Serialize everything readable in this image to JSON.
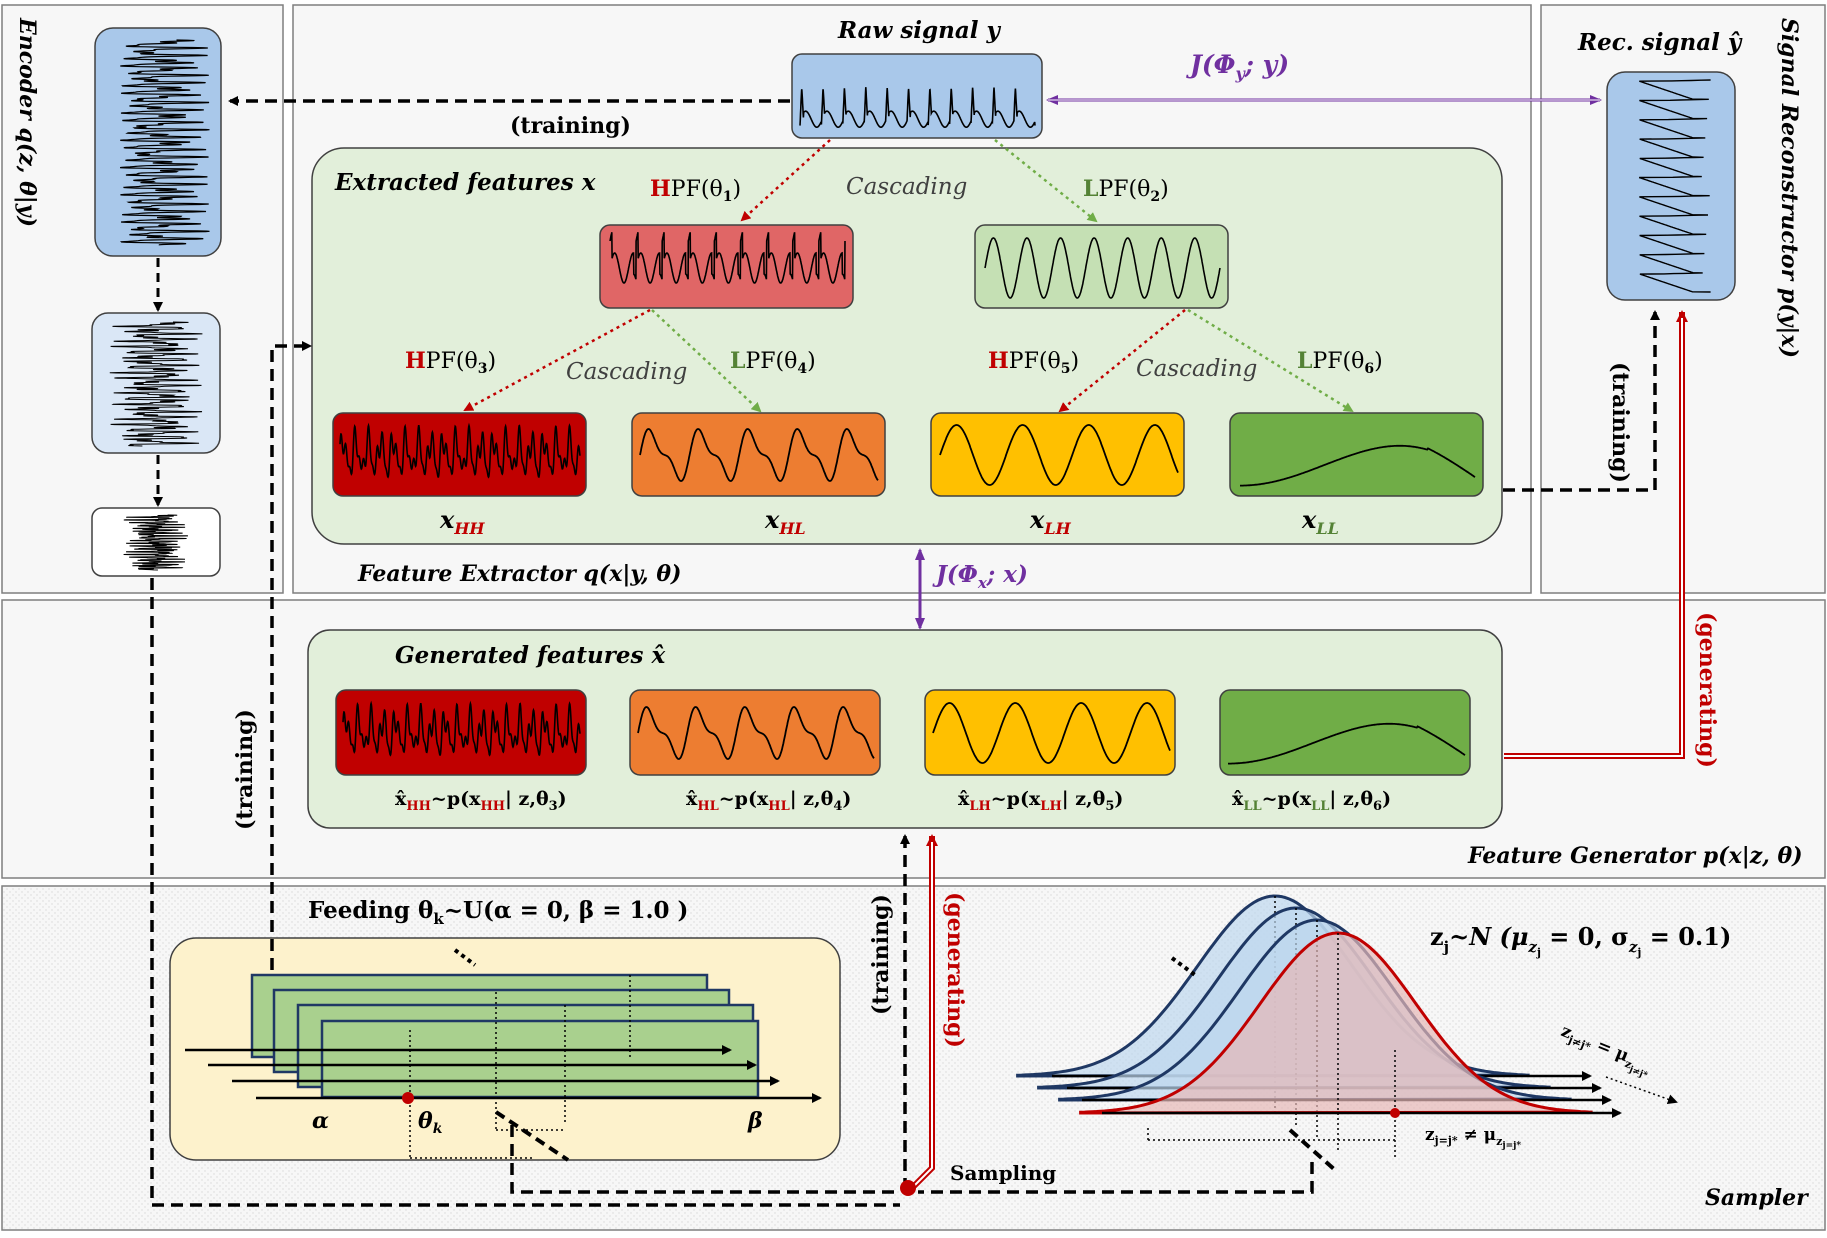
{
  "panels": {
    "encoder_label": "Encoder  q(z, θ|y)",
    "extractor_label": "Feature Extractor  q(x|y, θ)",
    "reconstructor_label": "Signal Reconstructor  p(y|x)",
    "generator_label": "Feature Generator  p(x|z, θ)",
    "sampler_label": "Sampler"
  },
  "top": {
    "raw_signal": "Raw signal y",
    "rec_signal": "Rec. signal ŷ",
    "J_y": "J(Φ",
    "J_y_sub": "y",
    "J_y_tail": "; y)",
    "J_x": "J(Φ",
    "J_x_sub": "x",
    "J_x_tail": "; x)",
    "training": "(training)",
    "generating": "(generating)",
    "sampling": "Sampling"
  },
  "extractor": {
    "title": "Extracted features x",
    "cascading": "Cascading",
    "filters": [
      {
        "letter": "H",
        "rest": "PF(θ",
        "sub": "1",
        "tail": ")"
      },
      {
        "letter": "L",
        "rest": "PF(θ",
        "sub": "2",
        "tail": ")"
      },
      {
        "letter": "H",
        "rest": "PF(θ",
        "sub": "3",
        "tail": ")"
      },
      {
        "letter": "L",
        "rest": "PF(θ",
        "sub": "4",
        "tail": ")"
      },
      {
        "letter": "H",
        "rest": "PF(θ",
        "sub": "5",
        "tail": ")"
      },
      {
        "letter": "L",
        "rest": "PF(θ",
        "sub": "6",
        "tail": ")"
      }
    ],
    "features": [
      {
        "base": "x",
        "sub": "HH"
      },
      {
        "base": "x",
        "sub": "HL"
      },
      {
        "base": "x",
        "sub": "LH"
      },
      {
        "base": "x",
        "sub": "LL"
      }
    ]
  },
  "generator": {
    "title": "Generated features x̂",
    "formulas": [
      {
        "head": "x̂",
        "sub": "HH",
        "mid": "~p(x",
        "sub2": "HH",
        "tail": "| z,θ",
        "th": "3",
        "end": ")"
      },
      {
        "head": "x̂",
        "sub": "HL",
        "mid": "~p(x",
        "sub2": "HL",
        "tail": "| z,θ",
        "th": "4",
        "end": ")"
      },
      {
        "head": "x̂",
        "sub": "LH",
        "mid": "~p(x",
        "sub2": "LH",
        "tail": "| z,θ",
        "th": "5",
        "end": ")"
      },
      {
        "head": "x̂",
        "sub": "LL",
        "mid": "~p(x",
        "sub2": "LL",
        "tail": "| z,θ",
        "th": "6",
        "end": ")"
      }
    ]
  },
  "sampler": {
    "feeding": "Feeding  θ",
    "feeding_sub": "k",
    "feeding_tail": "~U(α = 0, β = 1.0 )",
    "alpha": "α",
    "beta": "β",
    "theta_k": "θ",
    "theta_k_sub": "k",
    "z_dist": "z",
    "z_dist_sub": "j",
    "z_dist_tail": "~N (μ",
    "z_mu_sub": "z",
    "z_mu_subsub": "j",
    "z_mid": " = 0, σ",
    "z_sig_sub": "z",
    "z_sig_subsub": "j",
    "z_end": " = 0.1)",
    "z_eq": "z",
    "z_eq_sub": "j≠j*",
    "z_eq_tail": " = μ",
    "z_eq_mu_sub": "z",
    "z_eq_mu_subsub": "j≠j*",
    "z_neq": "z",
    "z_neq_sub": "j=j*",
    "z_neq_tail": " ≠ μ",
    "z_neq_mu_sub": "z",
    "z_neq_mu_subsub": "j=j*"
  },
  "colors": {
    "blue_fill": "#a9c8ea",
    "red_fill": "#c00000",
    "orange_fill": "#ed7d31",
    "yellow_fill": "#ffc000",
    "green_fill": "#70ad47",
    "panel_green": "#e2efda",
    "purple": "#7030a0",
    "dark_red": "#c00000",
    "dark_green": "#548235"
  }
}
